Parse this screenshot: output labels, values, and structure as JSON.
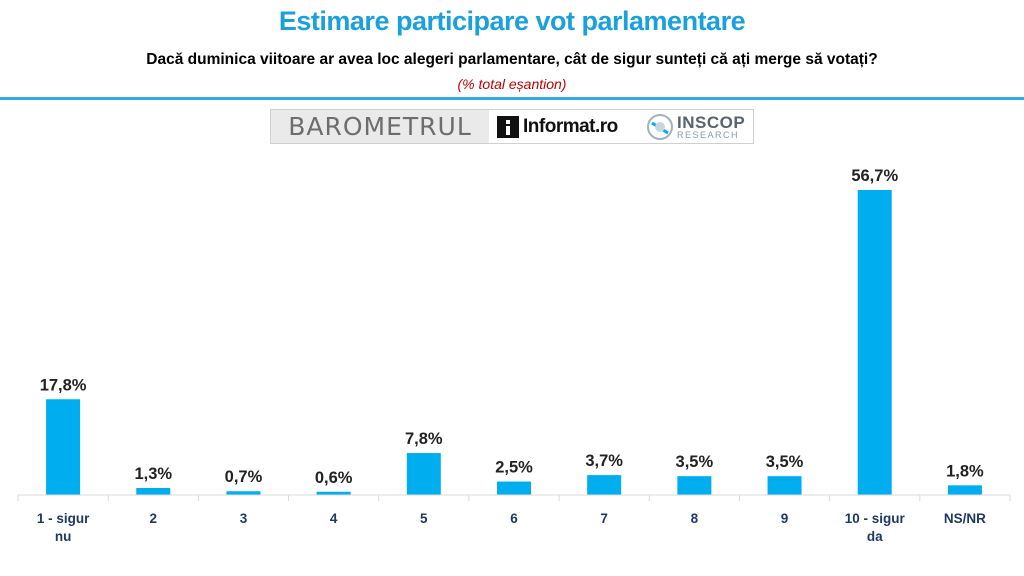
{
  "header": {
    "title": "Estimare participare vot parlamentare",
    "subtitle": "Dacă duminica viitoare ar avea loc alegeri parlamentare, cât de sigur sunteți că ați merge să votați?",
    "note": "(% total eșantion)"
  },
  "logos": {
    "barometer": "BAROMETRUL",
    "informat": "Informat.ro",
    "inscop_name": "INSCOP",
    "inscop_sub": "RESEARCH"
  },
  "colors": {
    "title": "#1aa0dc",
    "bar": "#00aeef",
    "note": "#c00000",
    "category_label": "#1f3864",
    "rule": "#35a9e0"
  },
  "chart_data": {
    "type": "bar",
    "categories": [
      [
        "1 - sigur",
        "nu"
      ],
      [
        "2"
      ],
      [
        "3"
      ],
      [
        "4"
      ],
      [
        "5"
      ],
      [
        "6"
      ],
      [
        "7"
      ],
      [
        "8"
      ],
      [
        "9"
      ],
      [
        "10 - sigur",
        "da"
      ],
      [
        "NS/NR"
      ]
    ],
    "values": [
      17.8,
      1.3,
      0.7,
      0.6,
      7.8,
      2.5,
      3.7,
      3.5,
      3.5,
      56.7,
      1.8
    ],
    "data_labels": [
      "17,8%",
      "1,3%",
      "0,7%",
      "0,6%",
      "7,8%",
      "2,5%",
      "3,7%",
      "3,5%",
      "3,5%",
      "56,7%",
      "1,8%"
    ],
    "ylim": [
      0,
      60
    ],
    "grid": false,
    "legend": "none"
  }
}
